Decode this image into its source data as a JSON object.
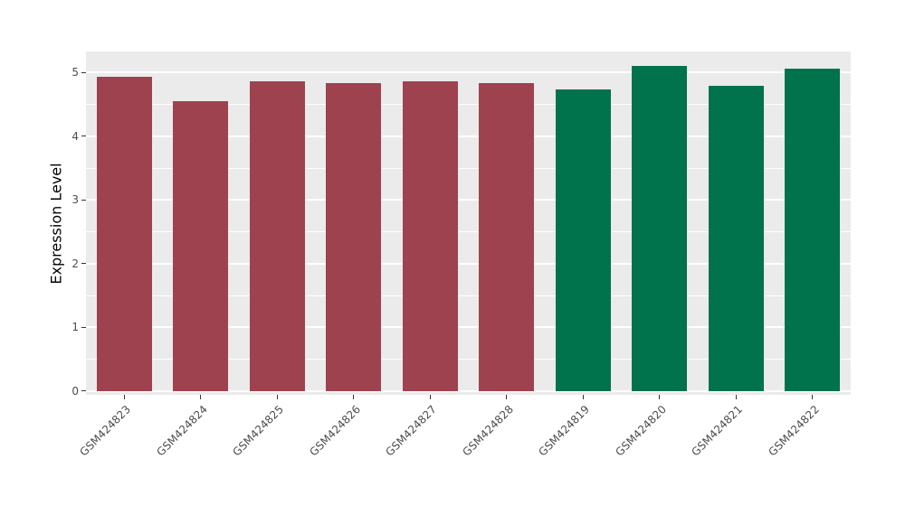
{
  "chart_data": {
    "type": "bar",
    "title": "",
    "xlabel": "",
    "ylabel": "Expression Level",
    "categories": [
      "GSM424823",
      "GSM424824",
      "GSM424825",
      "GSM424826",
      "GSM424827",
      "GSM424828",
      "GSM424819",
      "GSM424820",
      "GSM424821",
      "GSM424822"
    ],
    "values": [
      4.93,
      4.55,
      4.87,
      4.83,
      4.87,
      4.84,
      4.74,
      5.11,
      4.79,
      5.06
    ],
    "bar_colors": [
      "#9E4250",
      "#9E4250",
      "#9E4250",
      "#9E4250",
      "#9E4250",
      "#9E4250",
      "#00724C",
      "#00724C",
      "#00724C",
      "#00724C"
    ],
    "ylim": [
      0,
      5.33
    ],
    "y_ticks": [
      "0",
      "1",
      "2",
      "3",
      "4",
      "5"
    ],
    "y_minor_ticks": [
      0.5,
      1.5,
      2.5,
      3.5,
      4.5
    ],
    "grid": true,
    "legend": "none",
    "panel_bg": "#EBEBEB",
    "grid_color": "#FFFFFF",
    "tick_label_color": "#4D4D4D",
    "axis_title_color": "#000000"
  }
}
